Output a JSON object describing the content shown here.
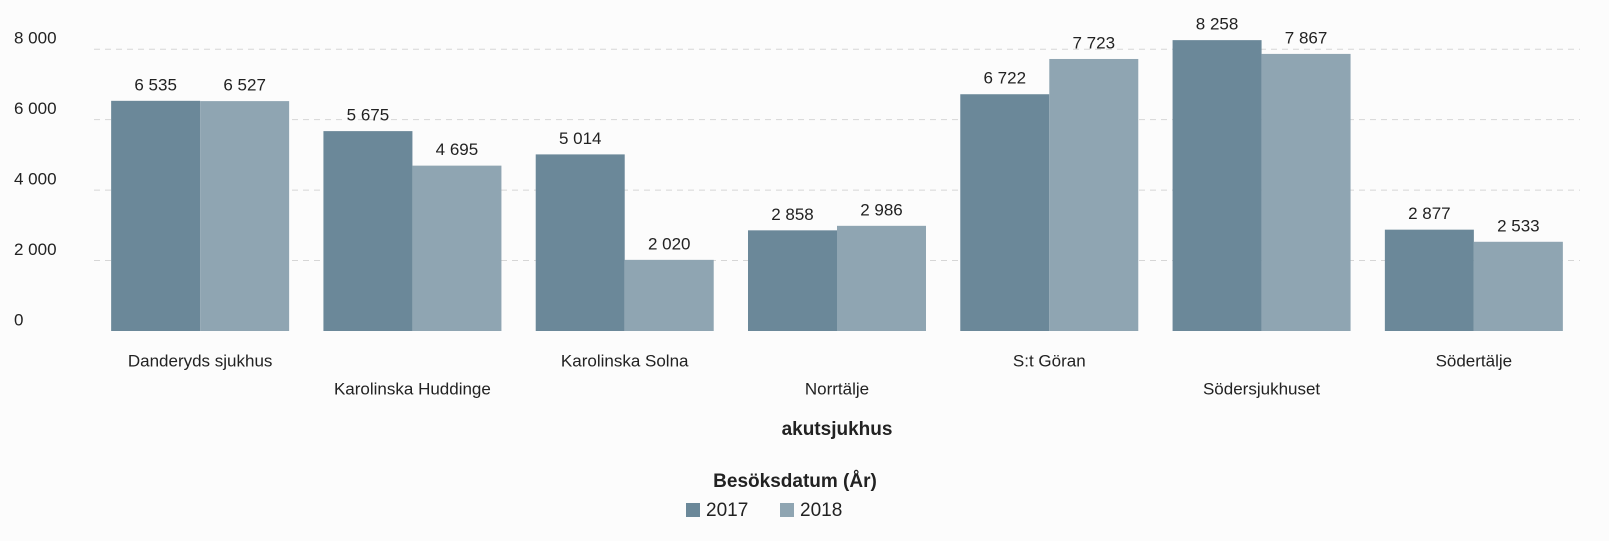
{
  "chart_data": {
    "type": "bar",
    "xlabel": "akutsjukhus",
    "legend_title": "Besöksdatum (År)",
    "categories": [
      "Danderyds sjukhus",
      "Karolinska Huddinge",
      "Karolinska Solna",
      "Norrtälje",
      "S:t Göran",
      "Södersjukhuset",
      "Södertälje"
    ],
    "series": [
      {
        "name": "2017",
        "color": "#6b8899",
        "values": [
          6535,
          5675,
          5014,
          2858,
          6722,
          8258,
          2877
        ],
        "value_labels": [
          "6 535",
          "5 675",
          "5 014",
          "2 858",
          "6 722",
          "8 258",
          "2 877"
        ]
      },
      {
        "name": "2018",
        "color": "#8fa5b2",
        "values": [
          6527,
          4695,
          2020,
          2986,
          7723,
          7867,
          2533
        ],
        "value_labels": [
          "6 527",
          "4 695",
          "2 020",
          "2 986",
          "7 723",
          "7 867",
          "2 533"
        ]
      }
    ],
    "ylim": [
      0,
      9000
    ],
    "yticks": [
      0,
      {
        "value": 2000,
        "label": "2 000"
      },
      {
        "value": 4000,
        "label": "4 000"
      },
      {
        "value": 6000,
        "label": "6 000"
      },
      {
        "value": 8000,
        "label": "8 000"
      }
    ],
    "grid": true
  }
}
